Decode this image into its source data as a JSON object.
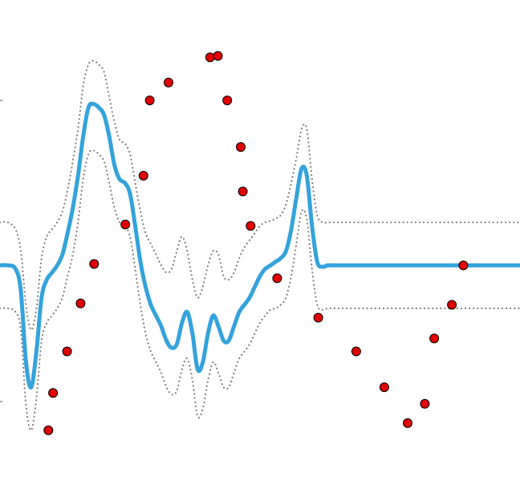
{
  "chart_data": {
    "type": "line",
    "title": "",
    "xlabel": "",
    "ylabel": "",
    "xlim": [
      0,
      10
    ],
    "ylim": [
      -3.3,
      3.7
    ],
    "grid": false,
    "legend": "none",
    "colors": {
      "mean": "#34a3db",
      "band": "#808080",
      "points": "#e00000",
      "point_edge": "#000000"
    },
    "series": [
      {
        "role": "mean",
        "style": "solid",
        "x": [
          0,
          0.15,
          0.3,
          0.4,
          0.5,
          0.6,
          0.7,
          0.8,
          0.9,
          1.0,
          1.1,
          1.2,
          1.3,
          1.4,
          1.5,
          1.6,
          1.7,
          1.8,
          1.9,
          2.0,
          2.1,
          2.2,
          2.3,
          2.4,
          2.5,
          2.6,
          2.7,
          2.8,
          2.9,
          3.0,
          3.1,
          3.2,
          3.3,
          3.4,
          3.5,
          3.6,
          3.7,
          3.8,
          3.9,
          4.0,
          4.1,
          4.2,
          4.3,
          4.4,
          4.5,
          4.6,
          4.7,
          4.8,
          4.9,
          5.0,
          5.1,
          5.2,
          5.3,
          5.4,
          5.5,
          5.6,
          5.7,
          5.8,
          5.9,
          6.0,
          6.1,
          6.2,
          6.3,
          6.4,
          6.5,
          6.6,
          6.7,
          6.8,
          6.9,
          7.0,
          7.1,
          7.2,
          7.3,
          7.4,
          7.5,
          7.6,
          7.7,
          7.8,
          7.9,
          8.0,
          8.1,
          8.2,
          8.3,
          8.4,
          8.5,
          8.6,
          8.7,
          8.8,
          8.9,
          9.0,
          9.1,
          9.2,
          9.3,
          9.4,
          9.6,
          9.8,
          10.0
        ],
        "y": [
          0.0,
          0.0,
          -0.05,
          -0.35,
          -1.35,
          -1.7,
          -1.2,
          -0.45,
          -0.2,
          -0.1,
          0.0,
          0.15,
          0.45,
          0.8,
          1.25,
          1.8,
          2.2,
          2.25,
          2.2,
          2.1,
          1.8,
          1.4,
          1.2,
          1.15,
          1.0,
          0.55,
          0.05,
          -0.3,
          -0.55,
          -0.7,
          -0.85,
          -1.05,
          -1.15,
          -1.1,
          -0.8,
          -0.65,
          -0.95,
          -1.45,
          -1.35,
          -0.95,
          -0.7,
          -0.85,
          -1.05,
          -1.05,
          -0.85,
          -0.65,
          -0.55,
          -0.45,
          -0.3,
          -0.15,
          -0.05,
          0.0,
          0.05,
          0.1,
          0.2,
          0.5,
          0.95,
          1.35,
          1.25,
          0.55,
          0.05,
          -0.02,
          0.0,
          0.0,
          0.0,
          0.0,
          0.0,
          0.0,
          0.0,
          0.0,
          0.0,
          0.0,
          0.0,
          0.0,
          0.0,
          0.0,
          0.0,
          0.0,
          0.0,
          0.0,
          0.0,
          0.0,
          0.0,
          0.0,
          0.0,
          0.0,
          0.0,
          0.0,
          0.0,
          0.0,
          0.0,
          0.0,
          0.0,
          0.0,
          0.0,
          0.0,
          0.0
        ]
      },
      {
        "role": "upper-band",
        "style": "dotted",
        "x": [
          0,
          0.15,
          0.3,
          0.4,
          0.5,
          0.6,
          0.7,
          0.8,
          0.9,
          1.0,
          1.1,
          1.2,
          1.3,
          1.4,
          1.5,
          1.6,
          1.7,
          1.8,
          1.9,
          2.0,
          2.1,
          2.2,
          2.3,
          2.4,
          2.5,
          2.6,
          2.7,
          2.8,
          2.9,
          3.0,
          3.1,
          3.2,
          3.3,
          3.4,
          3.5,
          3.6,
          3.7,
          3.8,
          3.9,
          4.0,
          4.1,
          4.2,
          4.3,
          4.4,
          4.5,
          4.6,
          4.7,
          4.8,
          4.9,
          5.0,
          5.1,
          5.2,
          5.3,
          5.4,
          5.5,
          5.6,
          5.7,
          5.8,
          5.9,
          6.0,
          6.1,
          6.2,
          6.3,
          6.4,
          6.5,
          6.6,
          6.7,
          6.8,
          6.9,
          7.0,
          7.1,
          7.2,
          7.3,
          7.4,
          7.5,
          7.6,
          7.7,
          7.8,
          7.9,
          8.0,
          8.1,
          8.2,
          8.3,
          8.4,
          8.5,
          8.6,
          8.7,
          8.8,
          8.9,
          9.0,
          9.1,
          9.2,
          9.3,
          9.4,
          9.6,
          9.8,
          10.0
        ],
        "y": [
          0.6,
          0.6,
          0.5,
          0.2,
          -0.55,
          -0.9,
          -0.6,
          0.1,
          0.4,
          0.5,
          0.6,
          0.75,
          1.05,
          1.45,
          1.9,
          2.5,
          2.8,
          2.85,
          2.8,
          2.7,
          2.35,
          2.0,
          1.75,
          1.7,
          1.55,
          1.15,
          0.75,
          0.45,
          0.3,
          0.15,
          0.0,
          -0.1,
          -0.05,
          0.2,
          0.4,
          0.2,
          -0.2,
          -0.45,
          -0.3,
          0.0,
          0.2,
          0.15,
          -0.15,
          -0.2,
          -0.1,
          0.1,
          0.25,
          0.35,
          0.45,
          0.55,
          0.6,
          0.62,
          0.65,
          0.7,
          0.85,
          1.15,
          1.5,
          1.9,
          1.9,
          1.2,
          0.7,
          0.6,
          0.6,
          0.6,
          0.6,
          0.6,
          0.6,
          0.6,
          0.6,
          0.6,
          0.6,
          0.6,
          0.6,
          0.6,
          0.6,
          0.6,
          0.6,
          0.6,
          0.6,
          0.6,
          0.6,
          0.6,
          0.6,
          0.6,
          0.6,
          0.6,
          0.6,
          0.6,
          0.6,
          0.6,
          0.6,
          0.6,
          0.6,
          0.6,
          0.6,
          0.6,
          0.6
        ]
      },
      {
        "role": "lower-band",
        "style": "dotted",
        "x": [
          0,
          0.15,
          0.3,
          0.4,
          0.5,
          0.6,
          0.7,
          0.8,
          0.9,
          1.0,
          1.1,
          1.2,
          1.3,
          1.4,
          1.5,
          1.6,
          1.7,
          1.8,
          1.9,
          2.0,
          2.1,
          2.2,
          2.3,
          2.4,
          2.5,
          2.6,
          2.7,
          2.8,
          2.9,
          3.0,
          3.1,
          3.2,
          3.3,
          3.4,
          3.5,
          3.6,
          3.7,
          3.8,
          3.9,
          4.0,
          4.1,
          4.2,
          4.3,
          4.4,
          4.5,
          4.6,
          4.7,
          4.8,
          4.9,
          5.0,
          5.1,
          5.2,
          5.3,
          5.4,
          5.5,
          5.6,
          5.7,
          5.8,
          5.9,
          6.0,
          6.1,
          6.2,
          6.3,
          6.4,
          6.5,
          6.6,
          6.7,
          6.8,
          6.9,
          7.0,
          7.1,
          7.2,
          7.3,
          7.4,
          7.5,
          7.6,
          7.7,
          7.8,
          7.9,
          8.0,
          8.1,
          8.2,
          8.3,
          8.4,
          8.5,
          8.6,
          8.7,
          8.8,
          8.9,
          9.0,
          9.1,
          9.2,
          9.3,
          9.4,
          9.6,
          9.8,
          10.0
        ],
        "y": [
          -0.6,
          -0.6,
          -0.65,
          -0.9,
          -1.95,
          -2.3,
          -1.85,
          -1.05,
          -0.8,
          -0.7,
          -0.6,
          -0.45,
          -0.15,
          0.15,
          0.6,
          1.2,
          1.55,
          1.6,
          1.55,
          1.45,
          1.15,
          0.8,
          0.6,
          0.55,
          0.4,
          -0.05,
          -0.55,
          -0.95,
          -1.2,
          -1.35,
          -1.5,
          -1.7,
          -1.8,
          -1.75,
          -1.45,
          -1.3,
          -1.6,
          -2.1,
          -2.0,
          -1.6,
          -1.35,
          -1.5,
          -1.7,
          -1.7,
          -1.5,
          -1.3,
          -1.2,
          -1.1,
          -0.95,
          -0.8,
          -0.7,
          -0.62,
          -0.6,
          -0.55,
          -0.45,
          -0.15,
          0.3,
          0.75,
          0.65,
          -0.05,
          -0.55,
          -0.62,
          -0.6,
          -0.6,
          -0.6,
          -0.6,
          -0.6,
          -0.6,
          -0.6,
          -0.6,
          -0.6,
          -0.6,
          -0.6,
          -0.6,
          -0.6,
          -0.6,
          -0.6,
          -0.6,
          -0.6,
          -0.6,
          -0.6,
          -0.6,
          -0.6,
          -0.6,
          -0.6,
          -0.6,
          -0.6,
          -0.6,
          -0.6,
          -0.6,
          -0.6,
          -0.6,
          -0.6,
          -0.6,
          -0.6,
          -0.6,
          -0.6
        ]
      },
      {
        "role": "observations",
        "style": "markers",
        "x": [
          0.93,
          1.02,
          1.29,
          1.55,
          1.81,
          2.41,
          2.76,
          2.88,
          3.24,
          4.04,
          4.19,
          4.37,
          4.63,
          4.67,
          4.82,
          5.33,
          6.12,
          6.85,
          7.39,
          7.84,
          8.17,
          8.35,
          8.69,
          8.91
        ],
        "y": [
          -2.3,
          -1.78,
          -1.2,
          -0.53,
          0.02,
          0.57,
          1.25,
          2.3,
          2.55,
          2.9,
          2.92,
          2.3,
          1.65,
          1.03,
          0.55,
          -0.18,
          -0.73,
          -1.2,
          -1.7,
          -2.2,
          -1.93,
          -1.02,
          -0.55,
          0.0
        ]
      }
    ]
  }
}
